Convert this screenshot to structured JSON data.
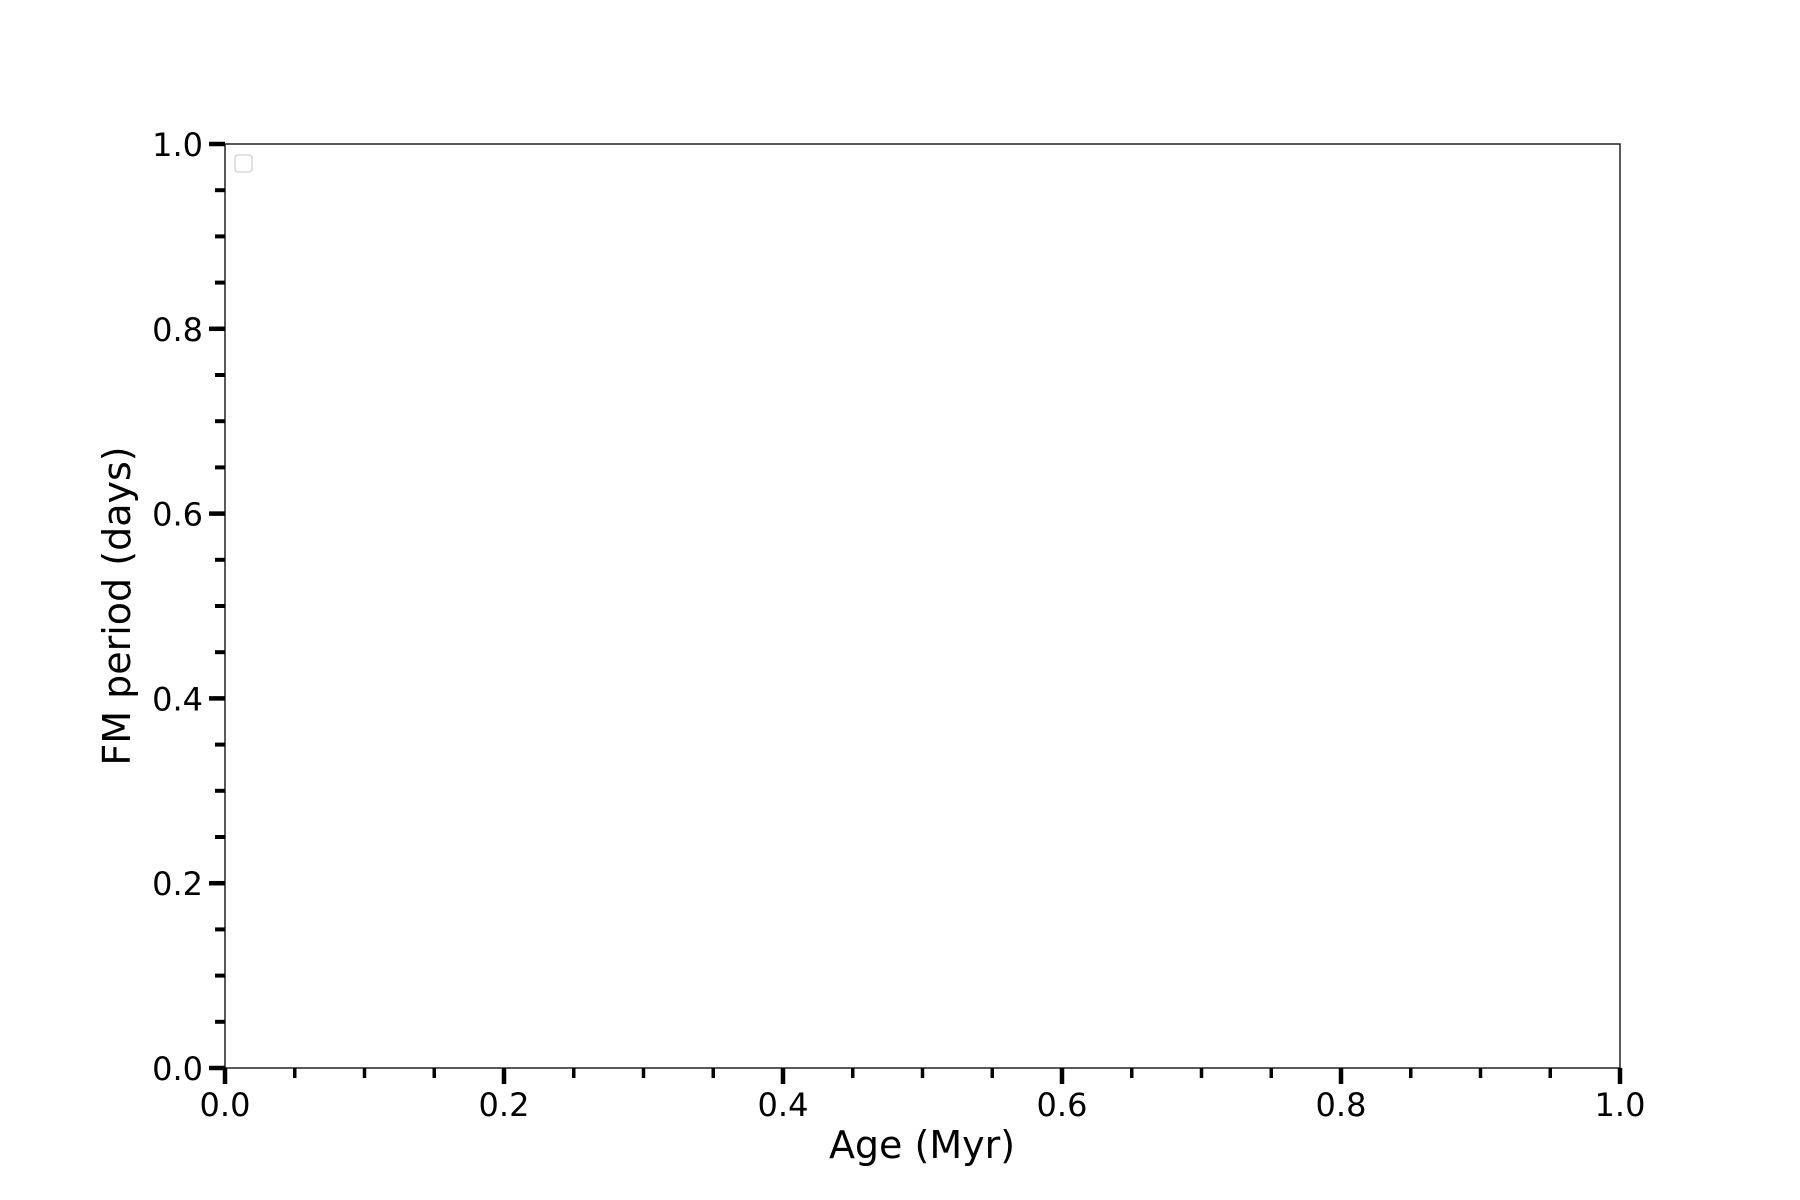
{
  "chart_data": {
    "type": "scatter",
    "title": "",
    "xlabel": "Age (Myr)",
    "ylabel": "FM period (days)",
    "xlim": [
      0.0,
      1.0
    ],
    "ylim": [
      0.0,
      1.0
    ],
    "x_ticks": [
      "0.0",
      "0.2",
      "0.4",
      "0.6",
      "0.8",
      "1.0"
    ],
    "y_ticks": [
      "0.0",
      "0.2",
      "0.4",
      "0.6",
      "0.8",
      "1.0"
    ],
    "x_minor_step": 0.05,
    "y_minor_step": 0.05,
    "grid": false,
    "legend": {
      "placement": "upper-left",
      "entries": []
    },
    "series": []
  }
}
